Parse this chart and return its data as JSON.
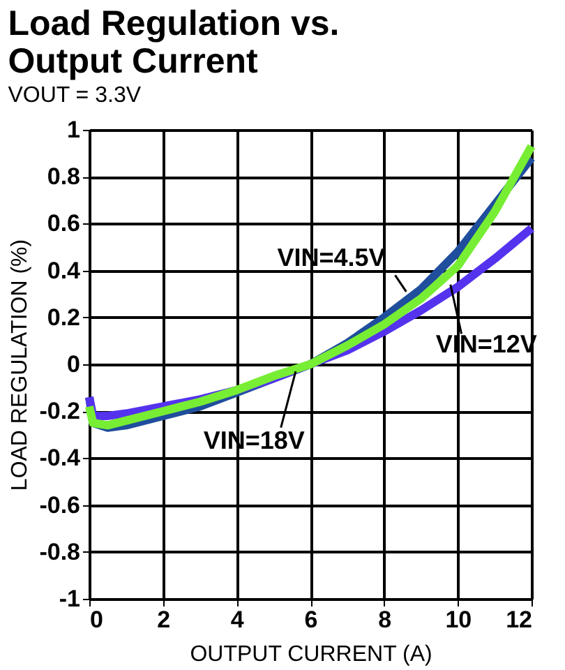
{
  "chart_data": {
    "type": "line",
    "title": "Load Regulation vs. Output Current",
    "subtitle": "VOUT = 3.3V",
    "xlabel": "OUTPUT CURRENT (A)",
    "ylabel": "LOAD REGULATION (%)",
    "xlim": [
      0,
      12
    ],
    "xticks": [
      0,
      2,
      4,
      6,
      8,
      10,
      12
    ],
    "ylim": [
      -1,
      1
    ],
    "yticks": [
      -1,
      -0.8,
      -0.6,
      -0.4,
      -0.2,
      0,
      0.2,
      0.4,
      0.6,
      0.8,
      1
    ],
    "grid": true,
    "legend": false,
    "line_style": "solid",
    "marker": "none",
    "series": [
      {
        "name": "VIN=4.5V",
        "color": "#1f4e9c",
        "x": [
          0,
          0.1,
          0.5,
          1,
          2,
          3,
          4,
          5,
          6,
          7,
          8,
          9,
          10,
          11,
          12
        ],
        "values": [
          -0.14,
          -0.25,
          -0.27,
          -0.26,
          -0.22,
          -0.18,
          -0.12,
          -0.06,
          0.0,
          0.09,
          0.2,
          0.32,
          0.48,
          0.68,
          0.88
        ]
      },
      {
        "name": "VIN=12V",
        "color": "#5533ee",
        "x": [
          0,
          0.1,
          0.5,
          1,
          2,
          3,
          4,
          5,
          6,
          7,
          8,
          9,
          10,
          11,
          12
        ],
        "values": [
          -0.14,
          -0.22,
          -0.22,
          -0.21,
          -0.18,
          -0.15,
          -0.11,
          -0.06,
          0.0,
          0.06,
          0.14,
          0.23,
          0.33,
          0.45,
          0.58
        ]
      },
      {
        "name": "VIN=18V",
        "color": "#77ee33",
        "x": [
          0,
          0.1,
          0.5,
          1,
          2,
          3,
          4,
          5,
          6,
          7,
          8,
          9,
          10,
          11,
          12
        ],
        "values": [
          -0.18,
          -0.25,
          -0.26,
          -0.24,
          -0.2,
          -0.16,
          -0.11,
          -0.05,
          0.0,
          0.08,
          0.17,
          0.28,
          0.42,
          0.65,
          0.93
        ]
      }
    ]
  }
}
